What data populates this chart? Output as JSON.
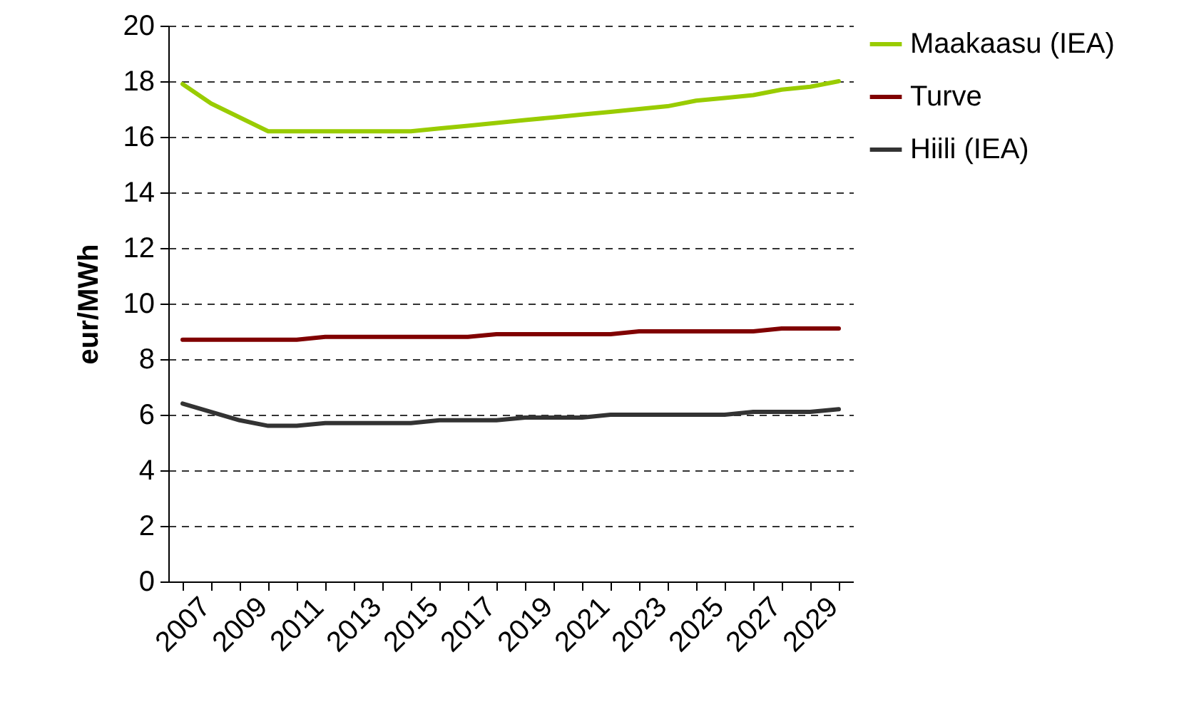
{
  "chart_data": {
    "type": "line",
    "ylabel": "eur/MWh",
    "categories": [
      "2007",
      null,
      "2009",
      null,
      "2011",
      null,
      "2013",
      null,
      "2015",
      null,
      "2017",
      null,
      "2019",
      null,
      "2021",
      null,
      "2023",
      null,
      "2025",
      null,
      "2027",
      null,
      "2029",
      null
    ],
    "series": [
      {
        "name": "Maakaasu (IEA)",
        "color": "#99cc00",
        "values": [
          17.9,
          17.2,
          16.7,
          16.2,
          16.2,
          16.2,
          16.2,
          16.2,
          16.2,
          16.3,
          16.4,
          16.5,
          16.6,
          16.7,
          16.8,
          16.9,
          17.0,
          17.1,
          17.3,
          17.4,
          17.5,
          17.7,
          17.8,
          18.0
        ]
      },
      {
        "name": "Turve",
        "color": "#800000",
        "values": [
          8.7,
          8.7,
          8.7,
          8.7,
          8.7,
          8.8,
          8.8,
          8.8,
          8.8,
          8.8,
          8.8,
          8.9,
          8.9,
          8.9,
          8.9,
          8.9,
          9.0,
          9.0,
          9.0,
          9.0,
          9.0,
          9.1,
          9.1,
          9.1
        ]
      },
      {
        "name": "Hiili (IEA)",
        "color": "#333333",
        "values": [
          6.4,
          6.1,
          5.8,
          5.6,
          5.6,
          5.7,
          5.7,
          5.7,
          5.7,
          5.8,
          5.8,
          5.8,
          5.9,
          5.9,
          5.9,
          6.0,
          6.0,
          6.0,
          6.0,
          6.0,
          6.1,
          6.1,
          6.1,
          6.2
        ]
      }
    ],
    "ylim": [
      0,
      20
    ],
    "yticks": [
      0,
      2,
      4,
      6,
      8,
      10,
      12,
      14,
      16,
      18,
      20
    ],
    "grid": "y",
    "legend": "right"
  }
}
